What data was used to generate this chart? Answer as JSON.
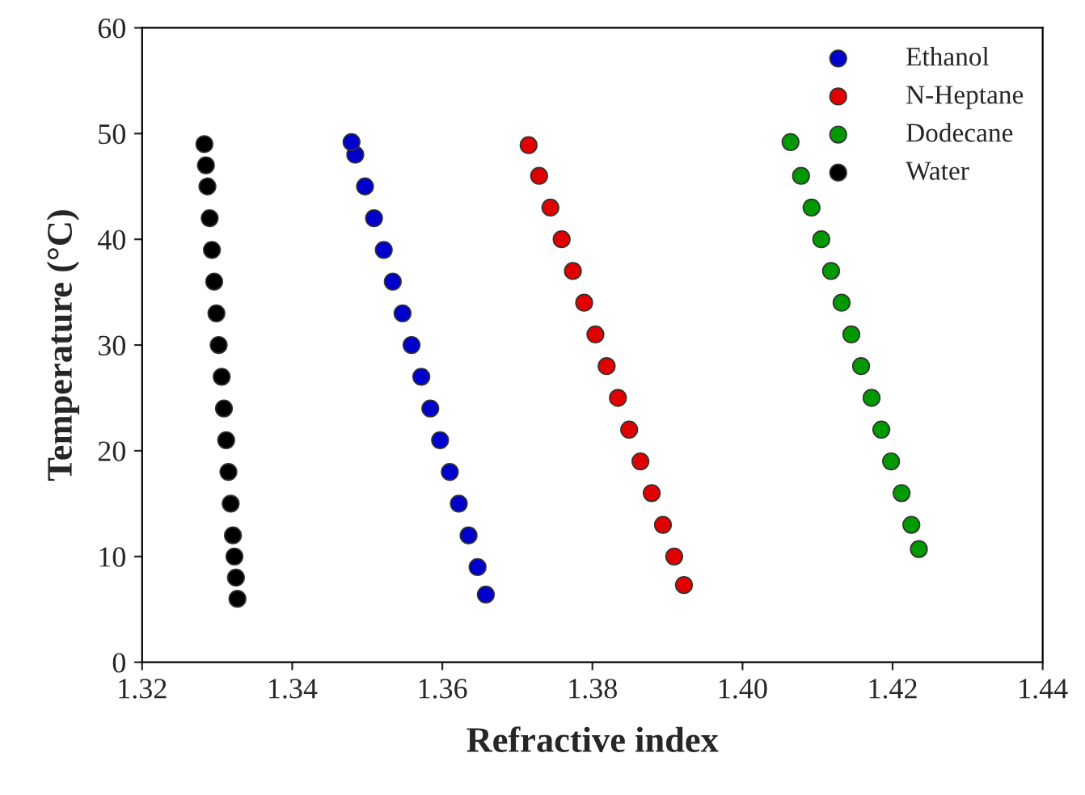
{
  "chart_data": {
    "type": "scatter",
    "xlabel": "Refractive index",
    "ylabel": "Temperature (°C)",
    "xlim": [
      1.32,
      1.44
    ],
    "ylim": [
      0,
      60
    ],
    "xticks": [
      {
        "value": 1.32,
        "label": "1.32"
      },
      {
        "value": 1.34,
        "label": "1.34"
      },
      {
        "value": 1.36,
        "label": "1.36"
      },
      {
        "value": 1.38,
        "label": "1.38"
      },
      {
        "value": 1.4,
        "label": "1.40"
      },
      {
        "value": 1.42,
        "label": "1.42"
      },
      {
        "value": 1.44,
        "label": "1.44"
      }
    ],
    "yticks": [
      0,
      10,
      20,
      30,
      40,
      50,
      60
    ],
    "grid": false,
    "legend": "top right",
    "marker": "circle",
    "series": [
      {
        "name": "Ethanol",
        "color": "#0000cc",
        "x": [
          1.3658,
          1.3647,
          1.3635,
          1.3622,
          1.361,
          1.3597,
          1.3584,
          1.3572,
          1.3559,
          1.3547,
          1.3534,
          1.3522,
          1.3509,
          1.3497,
          1.3484,
          1.3479
        ],
        "values": [
          6.4,
          9,
          12,
          15,
          18,
          21,
          24,
          27,
          30,
          33,
          36,
          39,
          42,
          45,
          48,
          49.2
        ]
      },
      {
        "name": "N-Heptane",
        "color": "#e00000",
        "x": [
          1.3922,
          1.3909,
          1.3894,
          1.3879,
          1.3864,
          1.3849,
          1.3834,
          1.3819,
          1.3804,
          1.3789,
          1.3774,
          1.3759,
          1.3744,
          1.3729,
          1.3715
        ],
        "values": [
          7.3,
          10,
          13,
          16,
          19,
          22,
          25,
          28,
          31,
          34,
          37,
          40,
          43,
          46,
          48.9
        ]
      },
      {
        "name": "Dodecane",
        "color": "#009900",
        "x": [
          1.4235,
          1.4225,
          1.4212,
          1.4198,
          1.4185,
          1.4172,
          1.4158,
          1.4145,
          1.4132,
          1.4118,
          1.4105,
          1.4092,
          1.4078,
          1.4064
        ],
        "values": [
          10.7,
          13,
          16,
          19,
          22,
          25,
          28,
          31,
          34,
          37,
          40,
          43,
          46,
          49.2
        ]
      },
      {
        "name": "Water",
        "color": "#000000",
        "x": [
          1.3327,
          1.3325,
          1.3323,
          1.3321,
          1.3318,
          1.3315,
          1.3312,
          1.3309,
          1.3306,
          1.3302,
          1.3299,
          1.3296,
          1.3293,
          1.329,
          1.3287,
          1.3285,
          1.3283
        ],
        "values": [
          6,
          8,
          10,
          12,
          15,
          18,
          21,
          24,
          27,
          30,
          33,
          36,
          39,
          42,
          45,
          47,
          49
        ]
      }
    ]
  }
}
